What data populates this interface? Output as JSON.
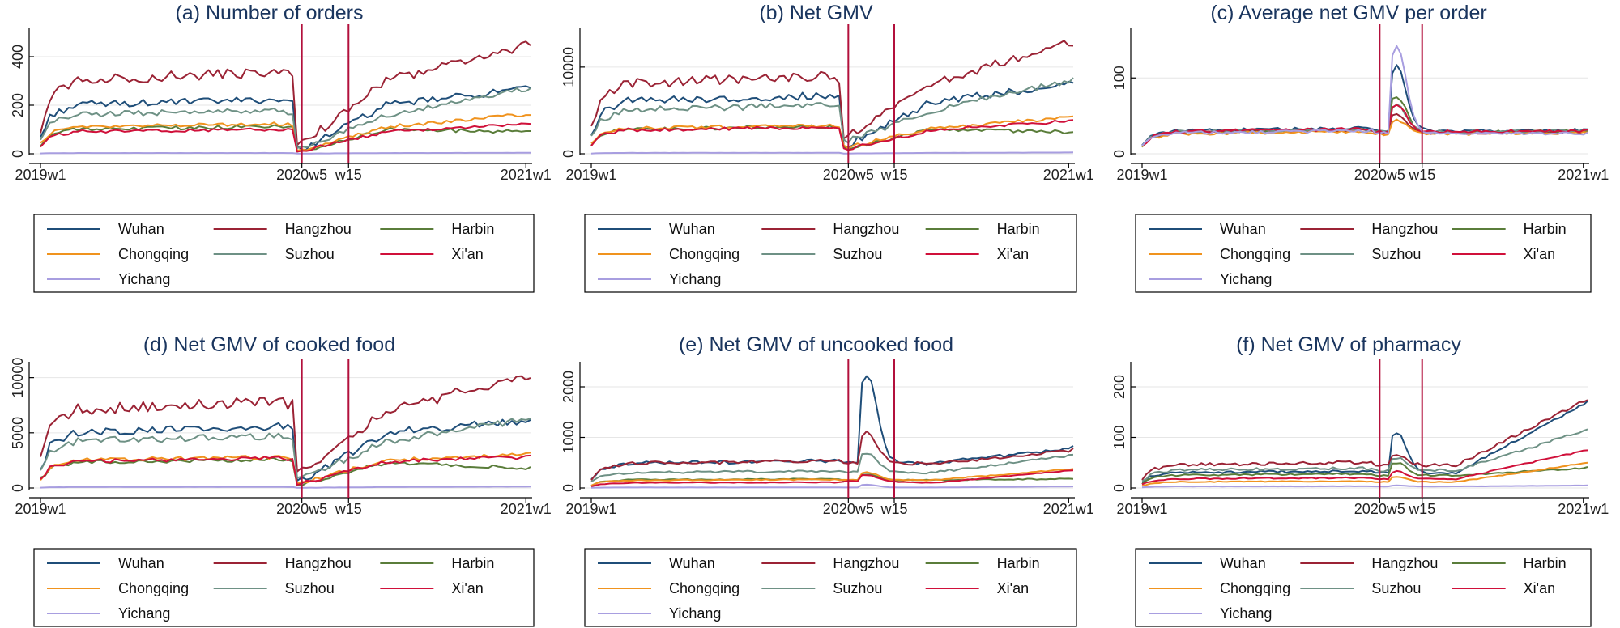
{
  "figure": {
    "shared": {
      "x_tick_labels": [
        "2019w1",
        "2020w5",
        "w15",
        "2021w1"
      ],
      "event_lines": [
        "2020w5",
        "2020w15"
      ],
      "series": [
        {
          "name": "Wuhan",
          "color": "#1f4e79"
        },
        {
          "name": "Hangzhou",
          "color": "#9b2335"
        },
        {
          "name": "Harbin",
          "color": "#5a7d3a"
        },
        {
          "name": "Chongqing",
          "color": "#f0931e"
        },
        {
          "name": "Suzhou",
          "color": "#6e9185"
        },
        {
          "name": "Xi'an",
          "color": "#d0103a"
        },
        {
          "name": "Yichang",
          "color": "#a89ee0"
        }
      ]
    }
  },
  "chart_data": [
    {
      "type": "line",
      "title": "(a) Number of orders",
      "x_range": [
        1,
        106
      ],
      "ylim": [
        0,
        500
      ],
      "y_ticks": [
        0,
        200,
        400
      ],
      "series": [
        {
          "name": "Wuhan",
          "base": 200,
          "end": 270,
          "dip": 20,
          "spike": 0
        },
        {
          "name": "Hangzhou",
          "base": 300,
          "end": 450,
          "dip": 40,
          "spike": 0
        },
        {
          "name": "Harbin",
          "base": 100,
          "end": 90,
          "dip": 10,
          "spike": 0
        },
        {
          "name": "Chongqing",
          "base": 110,
          "end": 165,
          "dip": 15,
          "spike": 0
        },
        {
          "name": "Suzhou",
          "base": 160,
          "end": 270,
          "dip": 20,
          "spike": 0
        },
        {
          "name": "Xi'an",
          "base": 90,
          "end": 125,
          "dip": 12,
          "spike": 0
        },
        {
          "name": "Yichang",
          "base": 3,
          "end": 4,
          "dip": 1,
          "spike": 0
        }
      ]
    },
    {
      "type": "line",
      "title": "(b) Net GMV",
      "x_range": [
        1,
        106
      ],
      "ylim": [
        0,
        14000
      ],
      "y_ticks": [
        0,
        10000
      ],
      "series": [
        {
          "name": "Wuhan",
          "base": 6000,
          "end": 8000,
          "dip": 1000,
          "spike": 0
        },
        {
          "name": "Hangzhou",
          "base": 8000,
          "end": 13000,
          "dip": 2000,
          "spike": 0
        },
        {
          "name": "Harbin",
          "base": 2800,
          "end": 2500,
          "dip": 600,
          "spike": 0
        },
        {
          "name": "Chongqing",
          "base": 2900,
          "end": 4200,
          "dip": 800,
          "spike": 0
        },
        {
          "name": "Suzhou",
          "base": 5000,
          "end": 8500,
          "dip": 1500,
          "spike": 0
        },
        {
          "name": "Xi'an",
          "base": 2700,
          "end": 3800,
          "dip": 600,
          "spike": 0
        },
        {
          "name": "Yichang",
          "base": 100,
          "end": 150,
          "dip": 30,
          "spike": 0
        }
      ]
    },
    {
      "type": "line",
      "title": "(c) Average net GMV per order",
      "x_range": [
        1,
        106
      ],
      "ylim": [
        0,
        160
      ],
      "y_ticks": [
        0,
        100
      ],
      "series": [
        {
          "name": "Wuhan",
          "base": 30,
          "end": 31,
          "dip": 30,
          "spike": 85
        },
        {
          "name": "Hangzhou",
          "base": 28,
          "end": 29,
          "dip": 28,
          "spike": 25
        },
        {
          "name": "Harbin",
          "base": 28,
          "end": 30,
          "dip": 28,
          "spike": 48
        },
        {
          "name": "Chongqing",
          "base": 26,
          "end": 27,
          "dip": 26,
          "spike": 18
        },
        {
          "name": "Suzhou",
          "base": 29,
          "end": 30,
          "dip": 29,
          "spike": 35
        },
        {
          "name": "Xi'an",
          "base": 29,
          "end": 30,
          "dip": 29,
          "spike": 35
        },
        {
          "name": "Yichang",
          "base": 27,
          "end": 27,
          "dip": 27,
          "spike": 115
        }
      ]
    },
    {
      "type": "line",
      "title": "(d) Net GMV of cooked food",
      "x_range": [
        1,
        106
      ],
      "ylim": [
        0,
        11000
      ],
      "y_ticks": [
        0,
        5000,
        10000
      ],
      "series": [
        {
          "name": "Wuhan",
          "base": 5000,
          "end": 6200,
          "dip": 700,
          "spike": 0
        },
        {
          "name": "Hangzhou",
          "base": 7000,
          "end": 10200,
          "dip": 1500,
          "spike": 0
        },
        {
          "name": "Harbin",
          "base": 2300,
          "end": 1800,
          "dip": 300,
          "spike": 0
        },
        {
          "name": "Chongqing",
          "base": 2500,
          "end": 3100,
          "dip": 500,
          "spike": 0
        },
        {
          "name": "Suzhou",
          "base": 4200,
          "end": 6300,
          "dip": 800,
          "spike": 0
        },
        {
          "name": "Xi'an",
          "base": 2400,
          "end": 2800,
          "dip": 400,
          "spike": 0
        },
        {
          "name": "Yichang",
          "base": 80,
          "end": 120,
          "dip": 20,
          "spike": 0
        }
      ]
    },
    {
      "type": "line",
      "title": "(e) Net GMV of uncooked food",
      "x_range": [
        1,
        106
      ],
      "ylim": [
        0,
        2400
      ],
      "y_ticks": [
        0,
        1000,
        2000
      ],
      "series": [
        {
          "name": "Wuhan",
          "base": 480,
          "end": 800,
          "dip": 500,
          "spike": 1750
        },
        {
          "name": "Hangzhou",
          "base": 480,
          "end": 750,
          "dip": 500,
          "spike": 600
        },
        {
          "name": "Harbin",
          "base": 160,
          "end": 180,
          "dip": 150,
          "spike": 120
        },
        {
          "name": "Chongqing",
          "base": 150,
          "end": 380,
          "dip": 160,
          "spike": 160
        },
        {
          "name": "Suzhou",
          "base": 300,
          "end": 650,
          "dip": 320,
          "spike": 380
        },
        {
          "name": "Xi'an",
          "base": 100,
          "end": 350,
          "dip": 150,
          "spike": 120
        },
        {
          "name": "Yichang",
          "base": 10,
          "end": 30,
          "dip": 10,
          "spike": 55
        }
      ]
    },
    {
      "type": "line",
      "title": "(f) Net GMV of pharmacy",
      "x_range": [
        1,
        106
      ],
      "ylim": [
        0,
        240
      ],
      "y_ticks": [
        0,
        100,
        200
      ],
      "series": [
        {
          "name": "Wuhan",
          "base": 30,
          "end": 170,
          "dip": 30,
          "spike": 80
        },
        {
          "name": "Hangzhou",
          "base": 45,
          "end": 175,
          "dip": 45,
          "spike": 20
        },
        {
          "name": "Harbin",
          "base": 25,
          "end": 40,
          "dip": 25,
          "spike": 25
        },
        {
          "name": "Chongqing",
          "base": 12,
          "end": 50,
          "dip": 12,
          "spike": 10
        },
        {
          "name": "Suzhou",
          "base": 35,
          "end": 115,
          "dip": 35,
          "spike": 25
        },
        {
          "name": "Xi'an",
          "base": 18,
          "end": 75,
          "dip": 18,
          "spike": 15
        },
        {
          "name": "Yichang",
          "base": 3,
          "end": 5,
          "dip": 3,
          "spike": 2
        }
      ]
    }
  ]
}
